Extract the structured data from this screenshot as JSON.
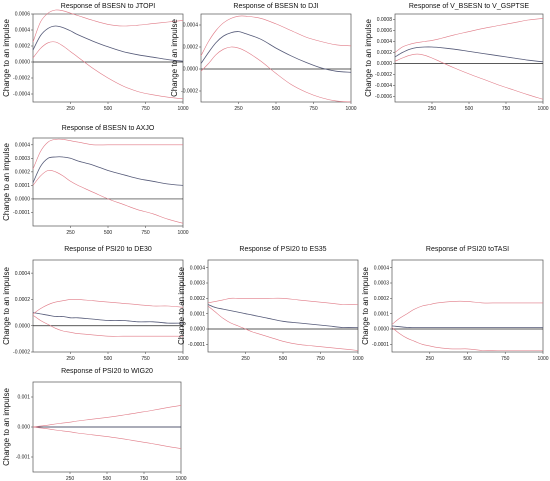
{
  "ylabel": "Change to an impulse",
  "colors": {
    "response": "#555a78",
    "band": "#e07a86",
    "zero": "#222222"
  },
  "chart_data": [
    {
      "type": "line",
      "title": "Response of BSESN to JTOPI",
      "xlim": [
        0,
        1000
      ],
      "ylim": [
        -0.0005,
        0.0006
      ],
      "xticks": [
        250,
        500,
        750,
        1000
      ],
      "yticks": [
        -0.0004,
        -0.0002,
        0.0,
        0.0002,
        0.0004,
        0.0006
      ],
      "ytick_labels": [
        "-0.0004",
        "-0.0002",
        "0.0000",
        "0.0002",
        "0.0004",
        "0.0006"
      ],
      "x": [
        0,
        50,
        100,
        150,
        200,
        250,
        300,
        400,
        500,
        600,
        700,
        800,
        900,
        1000
      ],
      "series": [
        {
          "role": "response",
          "values": [
            0.00015,
            0.00033,
            0.00042,
            0.00045,
            0.00043,
            0.00039,
            0.00034,
            0.00026,
            0.00019,
            0.00013,
            9e-05,
            6e-05,
            3e-05,
            1e-05
          ]
        },
        {
          "role": "upper",
          "values": [
            0.00025,
            0.0005,
            0.00061,
            0.00065,
            0.00064,
            0.00061,
            0.00058,
            0.00052,
            0.00047,
            0.00045,
            0.00046,
            0.00048,
            0.0005,
            0.00052
          ]
        },
        {
          "role": "lower",
          "values": [
            5e-05,
            0.00017,
            0.00024,
            0.00025,
            0.0002,
            0.00013,
            6e-05,
            -8e-05,
            -0.0002,
            -0.0003,
            -0.00037,
            -0.00041,
            -0.00044,
            -0.00046
          ]
        }
      ]
    },
    {
      "type": "line",
      "title": "Response of BSESN to DJI",
      "xlim": [
        0,
        1000
      ],
      "ylim": [
        -0.0003,
        0.0005
      ],
      "xticks": [
        250,
        500,
        750,
        1000
      ],
      "yticks": [
        -0.0002,
        0.0,
        0.0002,
        0.0004
      ],
      "ytick_labels": [
        "-0.0002",
        "0.0000",
        "0.0002",
        "0.0004"
      ],
      "x": [
        0,
        50,
        100,
        150,
        200,
        250,
        300,
        400,
        500,
        600,
        700,
        800,
        900,
        1000
      ],
      "series": [
        {
          "role": "response",
          "values": [
            5e-05,
            0.00015,
            0.00024,
            0.0003,
            0.00033,
            0.00034,
            0.00032,
            0.00027,
            0.00019,
            0.00012,
            6e-05,
            1e-05,
            -2e-05,
            -3e-05
          ]
        },
        {
          "role": "upper",
          "values": [
            0.00012,
            0.00025,
            0.00035,
            0.00042,
            0.00046,
            0.00048,
            0.00048,
            0.00046,
            0.00041,
            0.00035,
            0.00029,
            0.00025,
            0.00022,
            0.00021
          ]
        },
        {
          "role": "lower",
          "values": [
            -2e-05,
            5e-05,
            0.00013,
            0.00018,
            0.0002,
            0.00019,
            0.00016,
            7e-05,
            -4e-05,
            -0.00014,
            -0.00021,
            -0.00026,
            -0.00029,
            -0.0003
          ]
        }
      ]
    },
    {
      "type": "line",
      "title": "Response of V_BSESN to V_GSPTSE",
      "xlim": [
        0,
        1000
      ],
      "ylim": [
        -0.0007,
        0.0009
      ],
      "xticks": [
        250,
        500,
        750,
        1000
      ],
      "yticks": [
        -0.0006,
        -0.0004,
        -0.0002,
        0.0,
        0.0002,
        0.0004,
        0.0006,
        0.0008
      ],
      "ytick_labels": [
        "-0.0006",
        "-0.0004",
        "-0.0002",
        "0.0000",
        "0.0002",
        "0.0004",
        "0.0006",
        "0.0008"
      ],
      "x": [
        0,
        50,
        100,
        150,
        200,
        250,
        300,
        400,
        500,
        600,
        700,
        800,
        900,
        1000
      ],
      "series": [
        {
          "role": "response",
          "values": [
            0.00012,
            0.0002,
            0.00026,
            0.00029,
            0.0003,
            0.0003,
            0.00029,
            0.00026,
            0.00022,
            0.00018,
            0.00014,
            0.0001,
            6e-05,
            3e-05
          ]
        },
        {
          "role": "upper",
          "values": [
            0.0002,
            0.0003,
            0.00035,
            0.00038,
            0.0004,
            0.00042,
            0.00045,
            0.00052,
            0.00058,
            0.00064,
            0.00069,
            0.00074,
            0.00079,
            0.00082
          ]
        },
        {
          "role": "lower",
          "values": [
            4e-05,
            0.0001,
            0.00015,
            0.00017,
            0.00015,
            0.0001,
            4e-05,
            -8e-05,
            -0.00019,
            -0.00029,
            -0.00039,
            -0.00048,
            -0.00057,
            -0.00065
          ]
        }
      ]
    },
    {
      "type": "line",
      "title": "Response of BSESN to AXJO",
      "xlim": [
        0,
        1000
      ],
      "ylim": [
        -0.0002,
        0.00045
      ],
      "xticks": [
        250,
        500,
        750,
        1000
      ],
      "yticks": [
        -0.0001,
        0.0,
        0.0001,
        0.0002,
        0.0003,
        0.0004
      ],
      "ytick_labels": [
        "-0.0001",
        "0.0000",
        "0.0001",
        "0.0002",
        "0.0003",
        "0.0004"
      ],
      "x": [
        0,
        50,
        100,
        150,
        200,
        250,
        300,
        400,
        500,
        600,
        700,
        800,
        900,
        1000
      ],
      "series": [
        {
          "role": "response",
          "values": [
            0.00012,
            0.00024,
            0.0003,
            0.00031,
            0.00031,
            0.0003,
            0.00028,
            0.00025,
            0.00021,
            0.00018,
            0.00015,
            0.00013,
            0.00011,
            0.0001
          ]
        },
        {
          "role": "upper",
          "values": [
            0.00022,
            0.00035,
            0.00042,
            0.00044,
            0.00044,
            0.00043,
            0.00042,
            0.0004,
            0.0004,
            0.0004,
            0.0004,
            0.0004,
            0.0004,
            0.0004
          ]
        },
        {
          "role": "lower",
          "values": [
            0.0001,
            0.00017,
            0.00021,
            0.0002,
            0.00017,
            0.00013,
            0.0001,
            5e-05,
            0.0,
            -4e-05,
            -8e-05,
            -0.00011,
            -0.00015,
            -0.00018
          ]
        }
      ]
    },
    {
      "type": "line",
      "title": "Response of PSI20 to DE30",
      "xlim": [
        0,
        1000
      ],
      "ylim": [
        -0.0002,
        0.0005
      ],
      "xticks": [
        250,
        500,
        750,
        1000
      ],
      "yticks": [
        -0.0002,
        0.0,
        0.0002,
        0.0004
      ],
      "ytick_labels": [
        "-0.0002",
        "0.0000",
        "0.0002",
        "0.0004"
      ],
      "x": [
        0,
        50,
        100,
        150,
        200,
        250,
        300,
        400,
        500,
        600,
        700,
        800,
        900,
        1000
      ],
      "series": [
        {
          "role": "response",
          "values": [
            0.0001,
            9e-05,
            8e-05,
            7e-05,
            7e-05,
            6e-05,
            6e-05,
            5e-05,
            4e-05,
            4e-05,
            3e-05,
            3e-05,
            2e-05,
            2e-05
          ]
        },
        {
          "role": "upper",
          "values": [
            9e-05,
            0.00013,
            0.00016,
            0.00018,
            0.00019,
            0.0002,
            0.0002,
            0.00019,
            0.00018,
            0.00017,
            0.00016,
            0.00015,
            0.00015,
            0.00014
          ]
        },
        {
          "role": "lower",
          "values": [
            8e-05,
            4e-05,
            1e-05,
            -2e-05,
            -4e-05,
            -5e-05,
            -6e-05,
            -7e-05,
            -8e-05,
            -8e-05,
            -8e-05,
            -8e-05,
            -8e-05,
            -8e-05
          ]
        }
      ]
    },
    {
      "type": "line",
      "title": "Response of PSI20 to ES35",
      "xlim": [
        0,
        1000
      ],
      "ylim": [
        -0.00015,
        0.00045
      ],
      "xticks": [
        250,
        500,
        750,
        1000
      ],
      "yticks": [
        -0.0001,
        0.0,
        0.0001,
        0.0002,
        0.0003,
        0.0004
      ],
      "ytick_labels": [
        "-0.0001",
        "0.0000",
        "0.0001",
        "0.0002",
        "0.0003",
        "0.0004"
      ],
      "x": [
        0,
        50,
        100,
        150,
        200,
        250,
        300,
        400,
        500,
        600,
        700,
        800,
        900,
        1000
      ],
      "series": [
        {
          "role": "response",
          "values": [
            0.00016,
            0.00014,
            0.00013,
            0.00012,
            0.00011,
            0.0001,
            9e-05,
            7e-05,
            5e-05,
            4e-05,
            3e-05,
            2e-05,
            1e-05,
            1e-05
          ]
        },
        {
          "role": "upper",
          "values": [
            0.00017,
            0.00018,
            0.00019,
            0.0002,
            0.0002,
            0.0002,
            0.0002,
            0.0002,
            0.0002,
            0.00019,
            0.00018,
            0.00017,
            0.00016,
            0.00016
          ]
        },
        {
          "role": "lower",
          "values": [
            0.00015,
            0.00011,
            7e-05,
            4e-05,
            2e-05,
            0.0,
            -2e-05,
            -5e-05,
            -8e-05,
            -0.0001,
            -0.00011,
            -0.00012,
            -0.00013,
            -0.00014
          ]
        }
      ]
    },
    {
      "type": "line",
      "title": "Response of PSI20 toTASI",
      "xlim": [
        0,
        1000
      ],
      "ylim": [
        -0.00015,
        0.00045
      ],
      "xticks": [
        250,
        500,
        750,
        1000
      ],
      "yticks": [
        -0.0001,
        0.0,
        0.0001,
        0.0002,
        0.0003,
        0.0004
      ],
      "ytick_labels": [
        "-0.0001",
        "0.0000",
        "0.0001",
        "0.0002",
        "0.0003",
        "0.0004"
      ],
      "x": [
        0,
        50,
        100,
        150,
        200,
        250,
        300,
        400,
        500,
        600,
        700,
        800,
        900,
        1000
      ],
      "series": [
        {
          "role": "response",
          "values": [
            2e-05,
            1.5e-05,
            1e-05,
            1e-05,
            1e-05,
            1e-05,
            1e-05,
            1e-05,
            1e-05,
            1e-05,
            1e-05,
            1e-05,
            1e-05,
            1e-05
          ]
        },
        {
          "role": "upper",
          "values": [
            3e-05,
            7e-05,
            0.0001,
            0.00013,
            0.00015,
            0.00016,
            0.00017,
            0.00018,
            0.00018,
            0.00017,
            0.00017,
            0.00017,
            0.00017,
            0.00017
          ]
        },
        {
          "role": "lower",
          "values": [
            1e-05,
            -3e-05,
            -6e-05,
            -8e-05,
            -0.0001,
            -0.00011,
            -0.00012,
            -0.00013,
            -0.00013,
            -0.00014,
            -0.00014,
            -0.00014,
            -0.00014,
            -0.00014
          ]
        }
      ]
    },
    {
      "type": "line",
      "title": "Response of PSI20 to WIG20",
      "xlim": [
        0,
        1000
      ],
      "ylim": [
        -0.0015,
        0.0015
      ],
      "xticks": [
        250,
        500,
        750,
        1000
      ],
      "yticks": [
        -0.001,
        0.0,
        0.001
      ],
      "ytick_labels": [
        "-0.001",
        "0.000",
        "0.001"
      ],
      "x": [
        0,
        50,
        100,
        150,
        200,
        250,
        300,
        400,
        500,
        600,
        700,
        800,
        900,
        1000
      ],
      "series": [
        {
          "role": "response",
          "values": [
            0.0,
            0.0,
            0.0,
            0.0,
            0.0,
            0.0,
            0.0,
            0.0,
            0.0,
            0.0,
            0.0,
            0.0,
            0.0,
            0.0
          ]
        },
        {
          "role": "upper",
          "values": [
            0.0,
            3e-05,
            6e-05,
            0.0001,
            0.00013,
            0.00016,
            0.0002,
            0.00026,
            0.00032,
            0.00039,
            0.00047,
            0.00055,
            0.00064,
            0.00072
          ]
        },
        {
          "role": "lower",
          "values": [
            0.0,
            -3e-05,
            -6e-05,
            -0.0001,
            -0.00013,
            -0.00016,
            -0.0002,
            -0.00026,
            -0.00032,
            -0.00039,
            -0.00047,
            -0.00055,
            -0.00064,
            -0.00072
          ]
        }
      ]
    }
  ]
}
